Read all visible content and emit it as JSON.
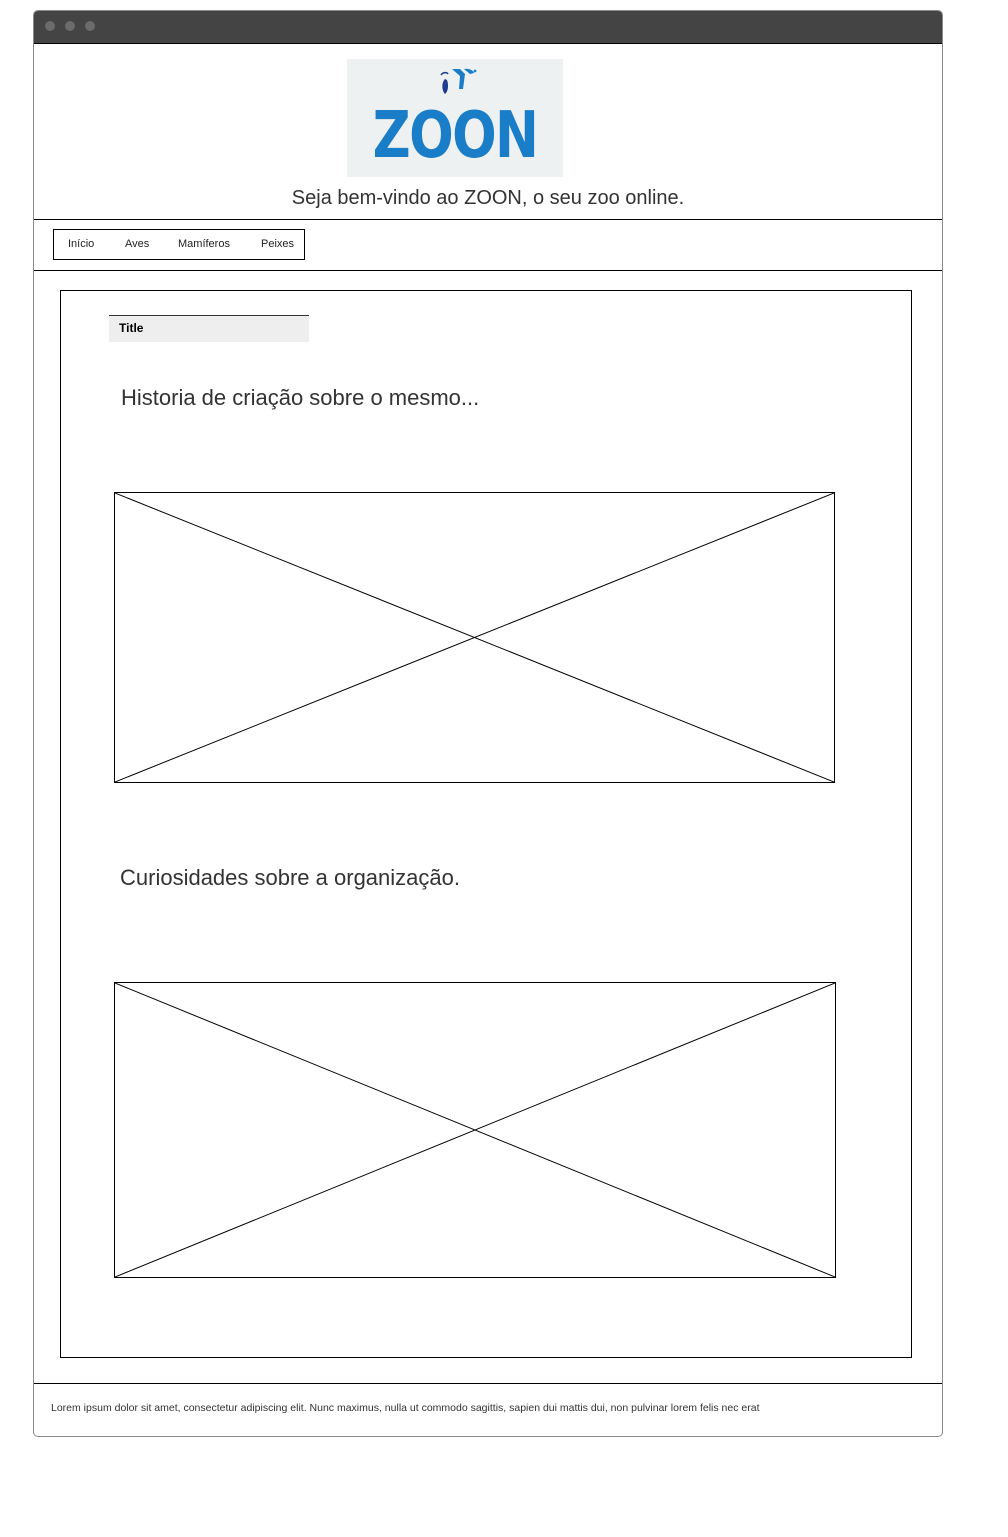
{
  "header": {
    "logo_text": "ZOON",
    "welcome": "Seja bem-vindo ao ZOON, o seu zoo online."
  },
  "nav": {
    "items": [
      {
        "label": "Início"
      },
      {
        "label": "Aves"
      },
      {
        "label": "Mamíferos"
      },
      {
        "label": "Peixes"
      }
    ]
  },
  "main": {
    "title_tab": "Title",
    "section1_text": "Historia de criação sobre o mesmo...",
    "section2_text": "Curiosidades sobre a organização."
  },
  "footer": {
    "text": "Lorem ipsum dolor sit amet, consectetur adipiscing elit. Nunc maximus, nulla ut commodo sagittis, sapien dui mattis dui, non pulvinar lorem felis nec erat"
  },
  "colors": {
    "titlebar": "#444444",
    "logo_blue": "#1a7dc8",
    "logo_bg": "#eef1f2"
  }
}
